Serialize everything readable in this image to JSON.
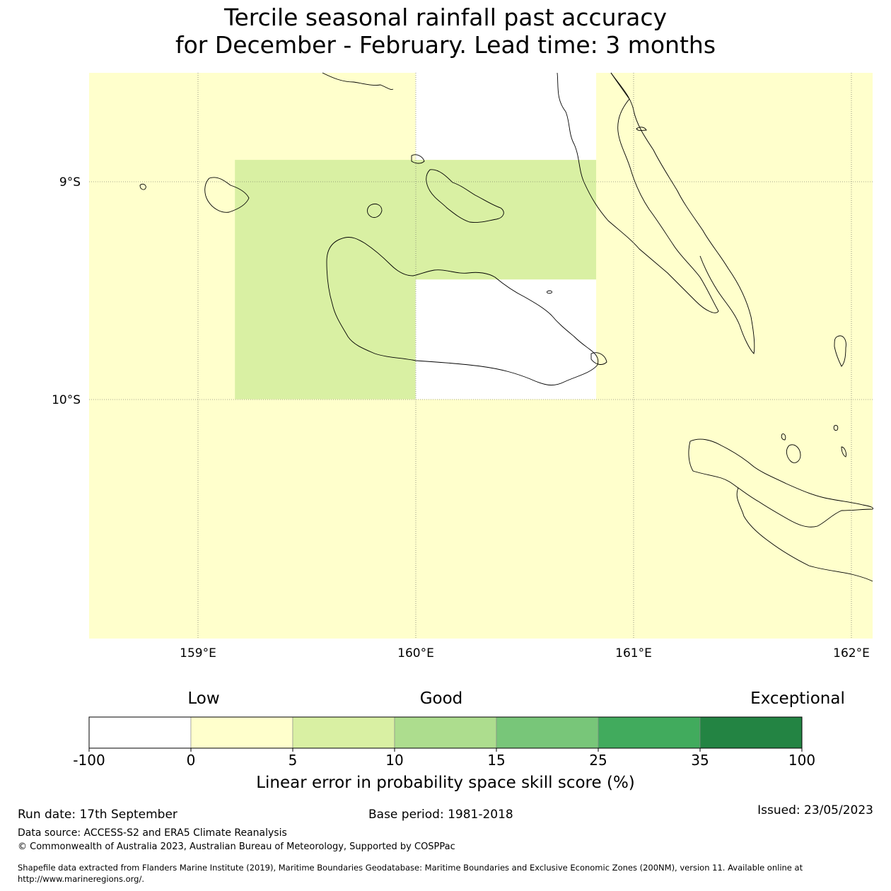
{
  "title": {
    "line1": "Tercile seasonal rainfall past accuracy",
    "line2": "for December - February. Lead time: 3 months"
  },
  "map": {
    "lat_labels": [
      "9°S",
      "10°S"
    ],
    "lon_labels": [
      "159°E",
      "160°E",
      "161°E",
      "162°E"
    ],
    "lon_range": [
      158.5,
      162.1
    ],
    "lat_range": [
      -8.5,
      -11.1
    ],
    "background_color": "#ffffcc",
    "cells": [
      {
        "lon": [
          158.5,
          159.17
        ],
        "lat": [
          -8.5,
          -10.0
        ],
        "color": "#ffffcc"
      },
      {
        "lon": [
          159.17,
          160.0
        ],
        "lat": [
          -8.9,
          -10.0
        ],
        "color": "#d9f0a3"
      },
      {
        "lon": [
          160.0,
          160.83
        ],
        "lat": [
          -8.9,
          -9.45
        ],
        "color": "#d9f0a3"
      },
      {
        "lon": [
          160.0,
          160.83
        ],
        "lat": [
          -8.5,
          -8.9
        ],
        "color": "#ffffff"
      },
      {
        "lon": [
          160.0,
          160.83
        ],
        "lat": [
          -9.45,
          -10.0
        ],
        "color": "#ffffff"
      },
      {
        "lon": [
          160.83,
          162.1
        ],
        "lat": [
          -8.5,
          -10.0
        ],
        "color": "#ffffcc"
      },
      {
        "lon": [
          158.5,
          162.1
        ],
        "lat": [
          -10.0,
          -11.1
        ],
        "color": "#ffffcc"
      }
    ]
  },
  "colorbar": {
    "categories": [
      "Low",
      "Good",
      "Exceptional"
    ],
    "ticks": [
      "-100",
      "0",
      "5",
      "10",
      "15",
      "25",
      "35",
      "100"
    ],
    "colors": [
      "#ffffff",
      "#ffffcc",
      "#d9f0a3",
      "#addd8e",
      "#78c679",
      "#41ab5d",
      "#238443"
    ],
    "label": "Linear error in probability space skill score (%)"
  },
  "footer": {
    "run_date": "Run date: 17th September",
    "base_period": "Base period: 1981-2018",
    "issued": "Issued: 23/05/2023",
    "data_source": "Data source: ACCESS-S2 and ERA5 Climate Reanalysis",
    "copyright": "© Commonwealth of Australia 2023, Australian Bureau of Meteorology, Supported by COSPPac",
    "shapefile_line1": "Shapefile data extracted from Flanders Marine Institute (2019), Maritime Boundaries Geodatabase: Maritime Boundaries and Exclusive Economic Zones (200NM), version 11. Available online at",
    "shapefile_line2": "http://www.marineregions.org/."
  }
}
